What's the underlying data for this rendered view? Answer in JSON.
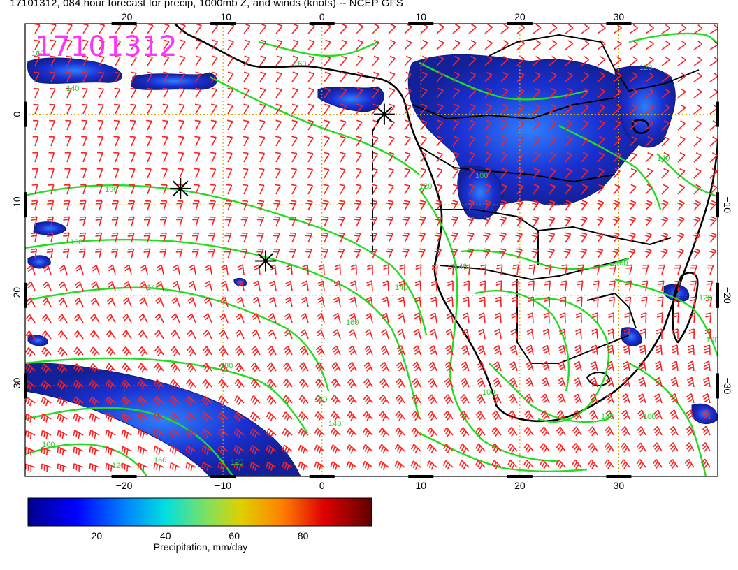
{
  "header": {
    "title": "17101312, 084 hour forecast for precip, 1000mb Z, and winds (knots) -- NCEP GFS"
  },
  "map": {
    "stamp": "17101312",
    "lon_range": [
      -30,
      40
    ],
    "lat_range": [
      -40,
      10
    ],
    "top_lon_ticks": [
      "−20",
      "−10",
      "0",
      "10",
      "20",
      "30"
    ],
    "bottom_lon_ticks": [
      "−20",
      "−10",
      "0",
      "10",
      "20",
      "30"
    ],
    "left_lat_ticks": [
      "0",
      "−10",
      "−20",
      "−30"
    ],
    "right_lat_ticks": [
      "−10",
      "−20",
      "−30"
    ],
    "contour_labels": [
      "160",
      "140",
      "160",
      "160",
      "140",
      "160",
      "120",
      "140",
      "160",
      "180",
      "140",
      "120",
      "160",
      "100",
      "140",
      "180",
      "160",
      "120",
      "100",
      "140",
      "160",
      "120",
      "100",
      "140",
      "120",
      "100"
    ],
    "colors": {
      "barbs": "#ff2020",
      "contours": "#22dd22",
      "coastline": "#000000",
      "gridlines": "#d9a500",
      "stamp": "#ff33ff"
    },
    "markers": [
      {
        "name": "storm-marker-equator",
        "lon": 6.3,
        "lat": 0
      },
      {
        "name": "storm-marker-west",
        "lon": -14.3,
        "lat": -8.2
      },
      {
        "name": "storm-marker-south",
        "lon": -5.7,
        "lat": -16.2
      }
    ]
  },
  "colorbar": {
    "label": "Precipitation, mm/day",
    "ticks": [
      "20",
      "40",
      "60",
      "80"
    ],
    "tick_values": [
      20,
      40,
      60,
      80
    ],
    "range": [
      0,
      100
    ]
  }
}
